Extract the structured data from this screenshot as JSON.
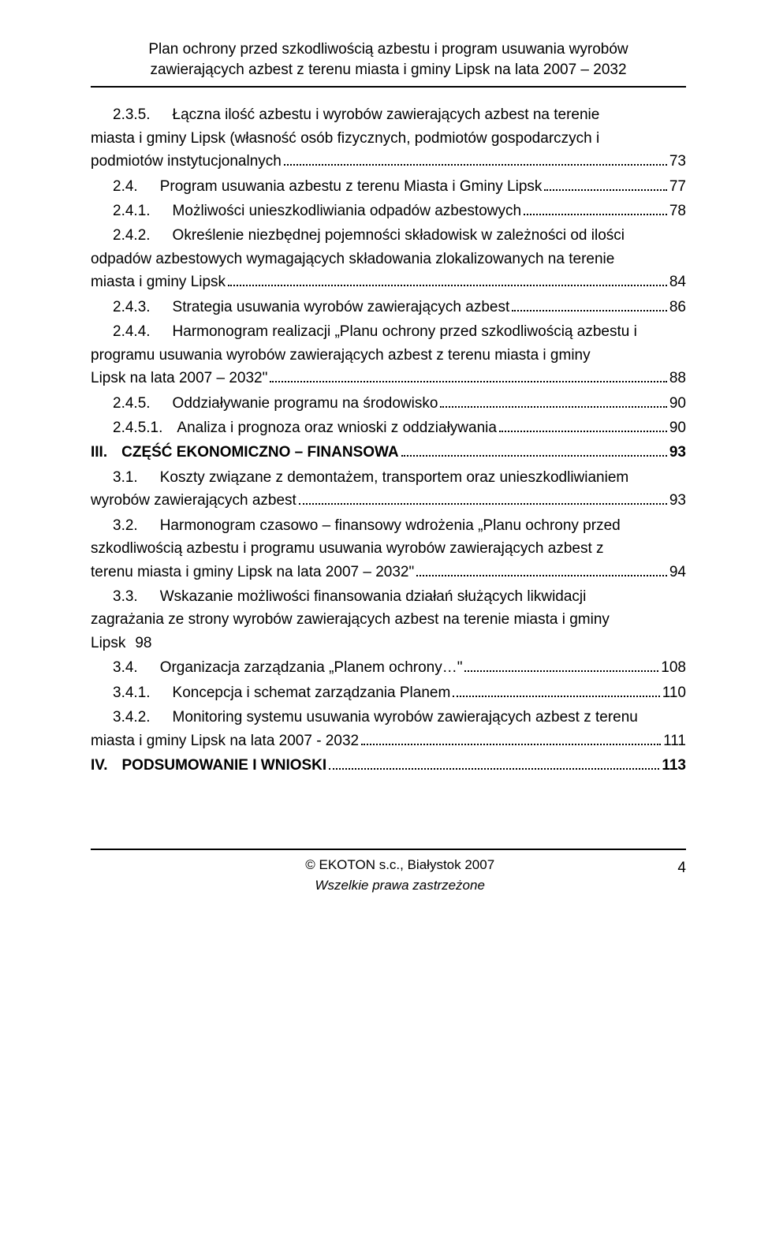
{
  "header": {
    "line1": "Plan ochrony przed szkodliwością azbestu i program usuwania wyrobów",
    "line2": "zawierających azbest z terenu miasta i gminy Lipsk na lata 2007 – 2032"
  },
  "toc": [
    {
      "num": "2.3.5.",
      "indent": 1,
      "gap": "med",
      "text_lines": [
        "Łączna ilość azbestu i wyrobów zawierających azbest na terenie",
        "miasta i gminy Lipsk (własność osób fizycznych, podmiotów gospodarczych i",
        "podmiotów instytucjonalnych"
      ],
      "page": "73"
    },
    {
      "num": "2.4.",
      "indent": 1,
      "gap": "med",
      "text_lines": [
        "Program usuwania azbestu z terenu Miasta i Gminy Lipsk"
      ],
      "page": "77"
    },
    {
      "num": "2.4.1.",
      "indent": 2,
      "gap": "med",
      "text_lines": [
        "Możliwości unieszkodliwiania odpadów azbestowych"
      ],
      "page": "78"
    },
    {
      "num": "2.4.2.",
      "indent": 2,
      "gap": "med",
      "text_lines": [
        "Określenie niezbędnej pojemności składowisk  w zależności od ilości",
        "odpadów azbestowych  wymagających składowania zlokalizowanych na terenie",
        "miasta i gminy Lipsk"
      ],
      "page": "84"
    },
    {
      "num": "2.4.3.",
      "indent": 2,
      "gap": "med",
      "text_lines": [
        "Strategia usuwania wyrobów zawierających azbest"
      ],
      "page": "86"
    },
    {
      "num": "2.4.4.",
      "indent": 2,
      "gap": "med",
      "text_lines": [
        "Harmonogram realizacji „Planu ochrony przed szkodliwością azbestu i",
        "programu usuwania wyrobów zawierających azbest z terenu miasta i gminy",
        "Lipsk na lata 2007 – 2032\""
      ],
      "page": "88"
    },
    {
      "num": "2.4.5.",
      "indent": 2,
      "gap": "med",
      "text_lines": [
        "Oddziaływanie programu na środowisko"
      ],
      "page": "90"
    },
    {
      "num": "2.4.5.1.",
      "indent": 2,
      "gap": "small",
      "text_lines": [
        "Analiza i prognoza oraz wnioski z oddziaływania"
      ],
      "page": "90"
    },
    {
      "num": "III.",
      "indent": 0,
      "gap": "small",
      "bold": true,
      "text_lines": [
        "CZĘŚĆ EKONOMICZNO – FINANSOWA"
      ],
      "page": "93"
    },
    {
      "num": "3.1.",
      "indent": 1,
      "gap": "med",
      "text_lines": [
        "Koszty związane z demontażem, transportem oraz unieszkodliwianiem",
        "wyrobów zawierających azbest"
      ],
      "page": "93"
    },
    {
      "num": "3.2.",
      "indent": 1,
      "gap": "med",
      "text_lines": [
        "Harmonogram czasowo – finansowy wdrożenia „Planu ochrony przed",
        "szkodliwością azbestu  i programu usuwania wyrobów zawierających azbest z",
        "terenu miasta i gminy Lipsk na lata  2007 – 2032\""
      ],
      "page": "94"
    },
    {
      "num": "3.3.",
      "indent": 1,
      "gap": "med",
      "text_lines": [
        "Wskazanie możliwości finansowania działań służących likwidacji",
        "zagrażania ze strony wyrobów zawierających azbest  na terenie miasta i gminy",
        "Lipsk"
      ],
      "page": "98",
      "no_page_dots": true
    },
    {
      "num": "3.4.",
      "indent": 1,
      "gap": "med",
      "text_lines": [
        "Organizacja zarządzania „Planem ochrony…\""
      ],
      "page": "108"
    },
    {
      "num": "3.4.1.",
      "indent": 2,
      "gap": "med",
      "text_lines": [
        "Koncepcja i schemat zarządzania Planem"
      ],
      "page": "110"
    },
    {
      "num": "3.4.2.",
      "indent": 2,
      "gap": "med",
      "text_lines": [
        "Monitoring systemu usuwania wyrobów zawierających azbest z terenu",
        "miasta i gminy Lipsk na lata 2007 - 2032"
      ],
      "page": "111"
    },
    {
      "num": "IV.",
      "indent": 0,
      "gap": "small",
      "bold": true,
      "text_lines": [
        "PODSUMOWANIE I WNIOSKI"
      ],
      "page": "113"
    }
  ],
  "footer": {
    "center1": "© EKOTON s.c., Białystok 2007",
    "center2": "Wszelkie prawa zastrzeżone",
    "pagenum": "4"
  }
}
